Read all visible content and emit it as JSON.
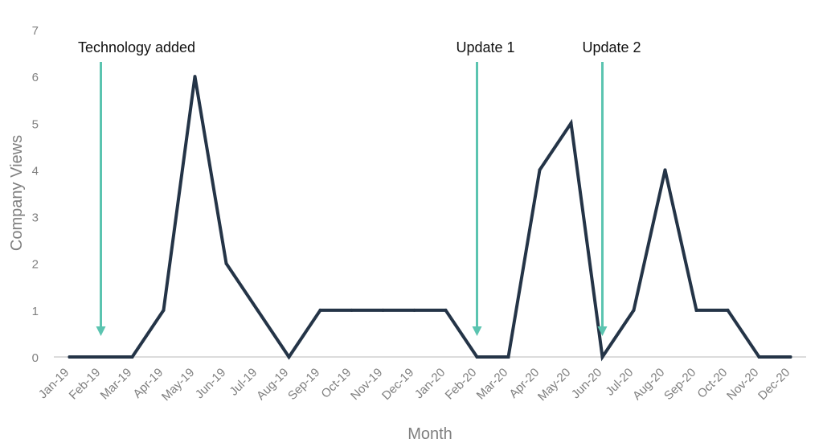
{
  "chart_data": {
    "type": "line",
    "title": "",
    "xlabel": "Month",
    "ylabel": "Company Views",
    "ylim": [
      0,
      7
    ],
    "yticks": [
      "0",
      "1",
      "2",
      "3",
      "4",
      "5",
      "6",
      "7"
    ],
    "grid": false,
    "categories": [
      "Jan-19",
      "Feb-19",
      "Mar-19",
      "Apr-19",
      "May-19",
      "Jun-19",
      "Jul-19",
      "Aug-19",
      "Sep-19",
      "Oct-19",
      "Nov-19",
      "Dec-19",
      "Jan-20",
      "Feb-20",
      "Mar-20",
      "Apr-20",
      "May-20",
      "Jun-20",
      "Jul-20",
      "Aug-20",
      "Sep-20",
      "Oct-20",
      "Nov-20",
      "Dec-20"
    ],
    "series": [
      {
        "values": [
          0,
          0,
          0,
          1,
          6,
          2,
          1,
          0,
          1,
          1,
          1,
          1,
          1,
          0,
          0,
          4,
          5,
          0,
          1,
          4,
          1,
          1,
          0,
          0
        ]
      }
    ],
    "annotations": [
      {
        "text": "Technology added",
        "x": "Feb-19"
      },
      {
        "text": "Update 1",
        "x": "Feb-20"
      },
      {
        "text": "Update 2",
        "x": "Jun-20"
      }
    ],
    "colors": {
      "line": "#243447",
      "arrow": "#5bc4b0",
      "axis": "#d0d0d0"
    }
  }
}
